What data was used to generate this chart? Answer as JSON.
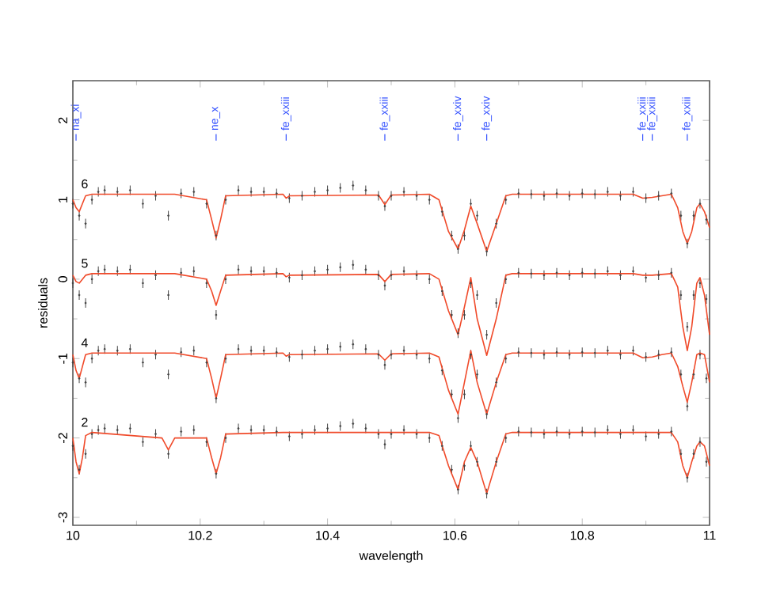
{
  "chart_data": {
    "type": "scatter",
    "xlabel": "wavelength",
    "ylabel": "residuals",
    "xlim": [
      10,
      11
    ],
    "xticks": [
      10,
      10.2,
      10.4,
      10.6,
      10.8,
      11
    ],
    "ylim": [
      -3.1,
      2.5
    ],
    "yticks": [
      -3,
      -2,
      -1,
      0,
      1,
      2
    ],
    "grid": false,
    "ref_lines": [
      {
        "axis": "x",
        "value": 10.005,
        "label": "na_xi",
        "color": "#3250ff"
      },
      {
        "axis": "x",
        "value": 10.225,
        "label": "ne_x",
        "color": "#3250ff"
      },
      {
        "axis": "x",
        "value": 10.335,
        "label": "fe_xxiii",
        "color": "#3250ff"
      },
      {
        "axis": "x",
        "value": 10.49,
        "label": "fe_xxiii",
        "color": "#3250ff"
      },
      {
        "axis": "x",
        "value": 10.605,
        "label": "fe_xxiv",
        "color": "#3250ff"
      },
      {
        "axis": "x",
        "value": 10.65,
        "label": "fe_xxiv",
        "color": "#3250ff"
      },
      {
        "axis": "x",
        "value": 10.895,
        "label": "fe_xxiii",
        "color": "#3250ff"
      },
      {
        "axis": "x",
        "value": 10.91,
        "label": "fe_xxiii",
        "color": "#3250ff"
      },
      {
        "axis": "x",
        "value": 10.965,
        "label": "fe_xxiii",
        "color": "#3250ff"
      }
    ],
    "series": [
      {
        "name": "6",
        "marker": "circle",
        "color": "#444444",
        "x": [
          10.0,
          10.01,
          10.02,
          10.03,
          10.04,
          10.05,
          10.07,
          10.09,
          10.11,
          10.13,
          10.15,
          10.17,
          10.19,
          10.21,
          10.225,
          10.24,
          10.26,
          10.28,
          10.3,
          10.32,
          10.34,
          10.36,
          10.38,
          10.4,
          10.42,
          10.44,
          10.46,
          10.48,
          10.49,
          10.5,
          10.52,
          10.54,
          10.56,
          10.58,
          10.595,
          10.605,
          10.615,
          10.625,
          10.635,
          10.65,
          10.665,
          10.68,
          10.7,
          10.72,
          10.74,
          10.76,
          10.78,
          10.8,
          10.82,
          10.84,
          10.86,
          10.88,
          10.9,
          10.92,
          10.94,
          10.955,
          10.965,
          10.975,
          10.985,
          10.995
        ],
        "values": [
          0.95,
          0.8,
          0.7,
          1.0,
          1.1,
          1.12,
          1.1,
          1.12,
          0.95,
          1.05,
          0.8,
          1.08,
          1.1,
          0.95,
          0.55,
          1.0,
          1.12,
          1.1,
          1.1,
          1.08,
          1.02,
          1.05,
          1.1,
          1.12,
          1.15,
          1.18,
          1.12,
          1.05,
          0.92,
          1.05,
          1.1,
          1.05,
          1.0,
          0.85,
          0.55,
          0.38,
          0.55,
          0.95,
          0.8,
          0.35,
          0.7,
          1.0,
          1.08,
          1.07,
          1.05,
          1.08,
          1.05,
          1.08,
          1.07,
          1.1,
          1.05,
          1.1,
          1.02,
          1.05,
          1.08,
          0.8,
          0.45,
          0.8,
          0.95,
          0.75
        ],
        "errors": [
          0.06,
          0.06,
          0.06,
          0.06,
          0.06,
          0.06,
          0.06,
          0.06,
          0.06,
          0.06,
          0.06,
          0.06,
          0.06,
          0.06,
          0.06,
          0.06,
          0.06,
          0.06,
          0.06,
          0.06,
          0.06,
          0.06,
          0.06,
          0.06,
          0.06,
          0.06,
          0.06,
          0.06,
          0.06,
          0.06,
          0.06,
          0.06,
          0.06,
          0.06,
          0.06,
          0.06,
          0.06,
          0.06,
          0.06,
          0.06,
          0.06,
          0.06,
          0.06,
          0.06,
          0.06,
          0.06,
          0.06,
          0.06,
          0.06,
          0.06,
          0.06,
          0.06,
          0.06,
          0.06,
          0.06,
          0.06,
          0.06,
          0.06,
          0.06,
          0.06
        ]
      },
      {
        "name": "5",
        "marker": "circle",
        "color": "#444444",
        "x": [
          10.0,
          10.01,
          10.02,
          10.03,
          10.04,
          10.05,
          10.07,
          10.09,
          10.11,
          10.13,
          10.15,
          10.17,
          10.19,
          10.21,
          10.225,
          10.24,
          10.26,
          10.28,
          10.3,
          10.32,
          10.34,
          10.36,
          10.38,
          10.4,
          10.42,
          10.44,
          10.46,
          10.48,
          10.49,
          10.5,
          10.52,
          10.54,
          10.56,
          10.58,
          10.595,
          10.605,
          10.615,
          10.625,
          10.635,
          10.65,
          10.665,
          10.68,
          10.7,
          10.72,
          10.74,
          10.76,
          10.78,
          10.8,
          10.82,
          10.84,
          10.86,
          10.88,
          10.9,
          10.92,
          10.94,
          10.955,
          10.965,
          10.975,
          10.985,
          10.995
        ],
        "values": [
          -0.05,
          -0.2,
          -0.3,
          0.0,
          0.1,
          0.12,
          0.1,
          0.12,
          -0.05,
          0.05,
          -0.2,
          0.08,
          0.1,
          -0.05,
          -0.45,
          0.0,
          0.12,
          0.1,
          0.1,
          0.08,
          0.02,
          0.05,
          0.1,
          0.12,
          0.15,
          0.18,
          0.12,
          0.05,
          -0.08,
          0.05,
          0.1,
          0.05,
          0.0,
          -0.15,
          -0.45,
          -0.68,
          -0.45,
          -0.05,
          -0.2,
          -0.7,
          -0.3,
          0.0,
          0.08,
          0.07,
          0.05,
          0.08,
          0.05,
          0.08,
          0.07,
          0.1,
          0.05,
          0.1,
          0.02,
          0.05,
          0.08,
          -0.2,
          -0.6,
          -0.2,
          -0.05,
          -0.25
        ],
        "errors": [
          0.06,
          0.06,
          0.06,
          0.06,
          0.06,
          0.06,
          0.06,
          0.06,
          0.06,
          0.06,
          0.06,
          0.06,
          0.06,
          0.06,
          0.06,
          0.06,
          0.06,
          0.06,
          0.06,
          0.06,
          0.06,
          0.06,
          0.06,
          0.06,
          0.06,
          0.06,
          0.06,
          0.06,
          0.06,
          0.06,
          0.06,
          0.06,
          0.06,
          0.06,
          0.06,
          0.06,
          0.06,
          0.06,
          0.06,
          0.06,
          0.06,
          0.06,
          0.06,
          0.06,
          0.06,
          0.06,
          0.06,
          0.06,
          0.06,
          0.06,
          0.06,
          0.06,
          0.06,
          0.06,
          0.06,
          0.06,
          0.06,
          0.06,
          0.06,
          0.06
        ]
      },
      {
        "name": "4",
        "marker": "circle",
        "color": "#444444",
        "x": [
          10.0,
          10.01,
          10.02,
          10.03,
          10.04,
          10.05,
          10.07,
          10.09,
          10.11,
          10.13,
          10.15,
          10.17,
          10.19,
          10.21,
          10.225,
          10.24,
          10.26,
          10.28,
          10.3,
          10.32,
          10.34,
          10.36,
          10.38,
          10.4,
          10.42,
          10.44,
          10.46,
          10.48,
          10.49,
          10.5,
          10.52,
          10.54,
          10.56,
          10.58,
          10.595,
          10.605,
          10.615,
          10.625,
          10.635,
          10.65,
          10.665,
          10.68,
          10.7,
          10.72,
          10.74,
          10.76,
          10.78,
          10.8,
          10.82,
          10.84,
          10.86,
          10.88,
          10.9,
          10.92,
          10.94,
          10.955,
          10.965,
          10.975,
          10.985,
          10.995
        ],
        "values": [
          -1.05,
          -1.25,
          -1.3,
          -1.0,
          -0.9,
          -0.88,
          -0.9,
          -0.88,
          -1.05,
          -0.95,
          -1.2,
          -0.92,
          -0.9,
          -1.05,
          -1.5,
          -1.0,
          -0.88,
          -0.9,
          -0.9,
          -0.92,
          -0.98,
          -0.95,
          -0.9,
          -0.88,
          -0.85,
          -0.82,
          -0.88,
          -0.95,
          -1.08,
          -0.95,
          -0.9,
          -0.95,
          -1.0,
          -1.15,
          -1.45,
          -1.75,
          -1.45,
          -0.95,
          -1.2,
          -1.7,
          -1.3,
          -1.0,
          -0.92,
          -0.93,
          -0.95,
          -0.92,
          -0.95,
          -0.92,
          -0.93,
          -0.9,
          -0.95,
          -0.9,
          -0.98,
          -0.95,
          -0.92,
          -1.2,
          -1.6,
          -1.2,
          -0.95,
          -1.25
        ],
        "errors": [
          0.06,
          0.06,
          0.06,
          0.06,
          0.06,
          0.06,
          0.06,
          0.06,
          0.06,
          0.06,
          0.06,
          0.06,
          0.06,
          0.06,
          0.06,
          0.06,
          0.06,
          0.06,
          0.06,
          0.06,
          0.06,
          0.06,
          0.06,
          0.06,
          0.06,
          0.06,
          0.06,
          0.06,
          0.06,
          0.06,
          0.06,
          0.06,
          0.06,
          0.06,
          0.06,
          0.06,
          0.06,
          0.06,
          0.06,
          0.06,
          0.06,
          0.06,
          0.06,
          0.06,
          0.06,
          0.06,
          0.06,
          0.06,
          0.06,
          0.06,
          0.06,
          0.06,
          0.06,
          0.06,
          0.06,
          0.06,
          0.06,
          0.06,
          0.06,
          0.06
        ]
      },
      {
        "name": "2",
        "marker": "circle",
        "color": "#444444",
        "x": [
          10.0,
          10.01,
          10.02,
          10.03,
          10.04,
          10.05,
          10.07,
          10.09,
          10.11,
          10.13,
          10.15,
          10.17,
          10.19,
          10.21,
          10.225,
          10.24,
          10.26,
          10.28,
          10.3,
          10.32,
          10.34,
          10.36,
          10.38,
          10.4,
          10.42,
          10.44,
          10.46,
          10.48,
          10.49,
          10.5,
          10.52,
          10.54,
          10.56,
          10.58,
          10.595,
          10.605,
          10.615,
          10.625,
          10.635,
          10.65,
          10.665,
          10.68,
          10.7,
          10.72,
          10.74,
          10.76,
          10.78,
          10.8,
          10.82,
          10.84,
          10.86,
          10.88,
          10.9,
          10.92,
          10.94,
          10.955,
          10.965,
          10.975,
          10.985,
          10.995
        ],
        "values": [
          -2.1,
          -2.4,
          -2.2,
          -1.95,
          -1.9,
          -1.88,
          -1.9,
          -1.88,
          -2.05,
          -1.95,
          -2.2,
          -1.92,
          -1.9,
          -2.05,
          -2.45,
          -2.0,
          -1.88,
          -1.9,
          -1.9,
          -1.92,
          -1.98,
          -1.95,
          -1.9,
          -1.88,
          -1.85,
          -1.82,
          -1.88,
          -1.95,
          -2.08,
          -1.95,
          -1.9,
          -1.95,
          -2.0,
          -2.1,
          -2.4,
          -2.65,
          -2.35,
          -2.1,
          -2.3,
          -2.7,
          -2.3,
          -2.0,
          -1.92,
          -1.93,
          -1.95,
          -1.92,
          -1.95,
          -1.92,
          -1.93,
          -1.9,
          -1.95,
          -1.9,
          -1.98,
          -1.95,
          -1.92,
          -2.2,
          -2.5,
          -2.2,
          -2.05,
          -2.3
        ],
        "errors": [
          0.06,
          0.06,
          0.06,
          0.06,
          0.06,
          0.06,
          0.06,
          0.06,
          0.06,
          0.06,
          0.06,
          0.06,
          0.06,
          0.06,
          0.06,
          0.06,
          0.06,
          0.06,
          0.06,
          0.06,
          0.06,
          0.06,
          0.06,
          0.06,
          0.06,
          0.06,
          0.06,
          0.06,
          0.06,
          0.06,
          0.06,
          0.06,
          0.06,
          0.06,
          0.06,
          0.06,
          0.06,
          0.06,
          0.06,
          0.06,
          0.06,
          0.06,
          0.06,
          0.06,
          0.06,
          0.06,
          0.06,
          0.06,
          0.06,
          0.06,
          0.06,
          0.06,
          0.06,
          0.06,
          0.06,
          0.06,
          0.06,
          0.06,
          0.06,
          0.06
        ]
      },
      {
        "type": "line",
        "marker": "none",
        "color": "#f04a2a",
        "x": [
          10.0,
          10.005,
          10.01,
          10.015,
          10.02,
          10.03,
          10.14,
          10.15,
          10.16,
          10.21,
          10.218,
          10.225,
          10.232,
          10.24,
          10.33,
          10.335,
          10.34,
          10.48,
          10.49,
          10.5,
          10.56,
          10.575,
          10.59,
          10.605,
          10.615,
          10.625,
          10.635,
          10.65,
          10.665,
          10.68,
          10.69,
          10.88,
          10.895,
          10.91,
          10.925,
          10.94,
          10.95,
          10.958,
          10.965,
          10.972,
          10.98,
          10.985,
          10.992,
          11.0
        ],
        "values": [
          1.0,
          0.9,
          0.85,
          0.95,
          1.05,
          1.07,
          1.07,
          1.07,
          1.07,
          1.0,
          0.75,
          0.52,
          0.75,
          1.05,
          1.07,
          1.02,
          1.05,
          1.06,
          0.94,
          1.06,
          1.07,
          1.0,
          0.6,
          0.38,
          0.62,
          0.92,
          0.7,
          0.35,
          0.7,
          1.05,
          1.07,
          1.07,
          1.02,
          1.03,
          1.05,
          1.07,
          0.9,
          0.6,
          0.45,
          0.6,
          0.9,
          0.95,
          0.85,
          0.65
        ]
      },
      {
        "type": "line",
        "marker": "none",
        "color": "#f04a2a",
        "x": [
          10.0,
          10.005,
          10.01,
          10.015,
          10.02,
          10.03,
          10.14,
          10.15,
          10.16,
          10.21,
          10.218,
          10.225,
          10.232,
          10.24,
          10.33,
          10.335,
          10.34,
          10.48,
          10.49,
          10.5,
          10.56,
          10.575,
          10.59,
          10.605,
          10.615,
          10.625,
          10.635,
          10.65,
          10.665,
          10.68,
          10.69,
          10.88,
          10.895,
          10.91,
          10.925,
          10.94,
          10.95,
          10.958,
          10.965,
          10.972,
          10.98,
          10.985,
          10.992,
          11.0
        ],
        "values": [
          0.05,
          -0.03,
          -0.05,
          0.0,
          0.05,
          0.07,
          0.07,
          0.07,
          0.07,
          0.0,
          -0.15,
          -0.33,
          -0.15,
          0.05,
          0.07,
          0.03,
          0.05,
          0.06,
          -0.03,
          0.06,
          0.07,
          0.0,
          -0.4,
          -0.7,
          -0.35,
          0.02,
          -0.5,
          -0.96,
          -0.5,
          0.05,
          0.07,
          0.07,
          0.05,
          0.05,
          0.06,
          0.07,
          -0.1,
          -0.6,
          -0.9,
          -0.6,
          -0.05,
          0.02,
          -0.2,
          -0.7
        ]
      },
      {
        "type": "line",
        "marker": "none",
        "color": "#f04a2a",
        "x": [
          10.0,
          10.005,
          10.01,
          10.015,
          10.02,
          10.03,
          10.14,
          10.15,
          10.16,
          10.21,
          10.218,
          10.225,
          10.232,
          10.24,
          10.33,
          10.335,
          10.34,
          10.48,
          10.49,
          10.5,
          10.56,
          10.575,
          10.59,
          10.605,
          10.615,
          10.625,
          10.635,
          10.65,
          10.665,
          10.68,
          10.69,
          10.88,
          10.895,
          10.91,
          10.925,
          10.94,
          10.95,
          10.958,
          10.965,
          10.972,
          10.98,
          10.985,
          10.992,
          11.0
        ],
        "values": [
          -0.95,
          -1.15,
          -1.25,
          -1.1,
          -0.95,
          -0.93,
          -0.93,
          -0.93,
          -0.93,
          -1.0,
          -1.25,
          -1.5,
          -1.25,
          -0.95,
          -0.93,
          -0.97,
          -0.95,
          -0.94,
          -1.02,
          -0.94,
          -0.93,
          -0.98,
          -1.4,
          -1.7,
          -1.3,
          -0.9,
          -1.3,
          -1.7,
          -1.3,
          -0.95,
          -0.93,
          -0.93,
          -0.99,
          -0.98,
          -0.95,
          -0.93,
          -1.1,
          -1.35,
          -1.55,
          -1.3,
          -0.95,
          -0.93,
          -0.95,
          -1.3
        ]
      },
      {
        "type": "line",
        "marker": "none",
        "color": "#f04a2a",
        "x": [
          10.0,
          10.005,
          10.01,
          10.015,
          10.02,
          10.03,
          10.14,
          10.15,
          10.16,
          10.21,
          10.218,
          10.225,
          10.232,
          10.24,
          10.33,
          10.335,
          10.34,
          10.48,
          10.49,
          10.5,
          10.56,
          10.575,
          10.59,
          10.605,
          10.615,
          10.625,
          10.635,
          10.65,
          10.665,
          10.68,
          10.69,
          10.88,
          10.895,
          10.91,
          10.925,
          10.94,
          10.95,
          10.958,
          10.965,
          10.972,
          10.98,
          10.985,
          10.992,
          11.0
        ],
        "values": [
          -2.0,
          -2.3,
          -2.45,
          -2.25,
          -1.97,
          -1.93,
          -2.0,
          -2.15,
          -2.0,
          -2.0,
          -2.25,
          -2.45,
          -2.25,
          -1.95,
          -1.93,
          -1.93,
          -1.93,
          -1.93,
          -1.93,
          -1.93,
          -1.93,
          -1.97,
          -2.35,
          -2.65,
          -2.3,
          -2.12,
          -2.3,
          -2.7,
          -2.3,
          -1.95,
          -1.93,
          -1.93,
          -1.93,
          -1.93,
          -1.93,
          -1.93,
          -2.05,
          -2.35,
          -2.5,
          -2.3,
          -2.1,
          -2.05,
          -2.1,
          -2.35
        ]
      }
    ]
  }
}
